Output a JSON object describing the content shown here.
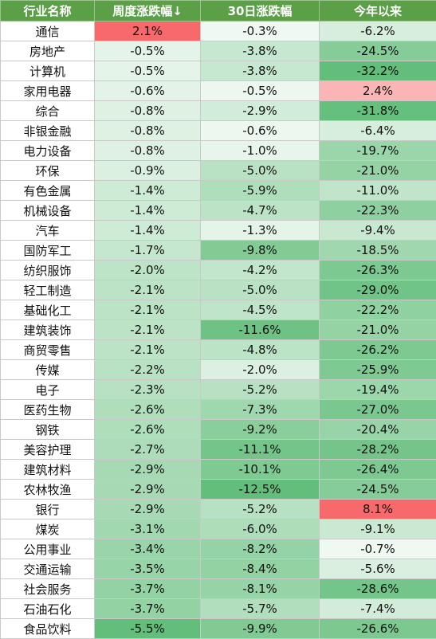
{
  "colors": {
    "header_bg": "#5b9f47",
    "header_text": "#ffffff",
    "positive": "#f8696b",
    "negative": "#63be7b",
    "neutral": "#ffffff"
  },
  "chart_data": {
    "type": "table",
    "columns": [
      "行业名称",
      "周度涨跌幅↓",
      "30日涨跌幅",
      "今年以来"
    ],
    "sort": "周度涨跌幅 descending",
    "rows": [
      [
        "通信",
        "2.1%",
        "-0.3%",
        "-6.2%"
      ],
      [
        "房地产",
        "-0.5%",
        "-3.8%",
        "-24.5%"
      ],
      [
        "计算机",
        "-0.5%",
        "-3.8%",
        "-32.2%"
      ],
      [
        "家用电器",
        "-0.6%",
        "-0.5%",
        "2.4%"
      ],
      [
        "综合",
        "-0.8%",
        "-2.9%",
        "-31.8%"
      ],
      [
        "非银金融",
        "-0.8%",
        "-0.6%",
        "-6.4%"
      ],
      [
        "电力设备",
        "-0.8%",
        "-1.0%",
        "-19.7%"
      ],
      [
        "环保",
        "-0.9%",
        "-5.0%",
        "-21.0%"
      ],
      [
        "有色金属",
        "-1.4%",
        "-5.9%",
        "-11.0%"
      ],
      [
        "机械设备",
        "-1.4%",
        "-4.7%",
        "-22.3%"
      ],
      [
        "汽车",
        "-1.4%",
        "-1.3%",
        "-9.4%"
      ],
      [
        "国防军工",
        "-1.7%",
        "-9.8%",
        "-18.5%"
      ],
      [
        "纺织服饰",
        "-2.0%",
        "-4.2%",
        "-26.3%"
      ],
      [
        "轻工制造",
        "-2.1%",
        "-5.0%",
        "-29.0%"
      ],
      [
        "基础化工",
        "-2.1%",
        "-4.5%",
        "-22.2%"
      ],
      [
        "建筑装饰",
        "-2.1%",
        "-11.6%",
        "-21.0%"
      ],
      [
        "商贸零售",
        "-2.1%",
        "-4.8%",
        "-26.2%"
      ],
      [
        "传媒",
        "-2.2%",
        "-2.0%",
        "-25.9%"
      ],
      [
        "电子",
        "-2.3%",
        "-5.2%",
        "-19.4%"
      ],
      [
        "医药生物",
        "-2.6%",
        "-7.3%",
        "-27.0%"
      ],
      [
        "钢铁",
        "-2.6%",
        "-9.2%",
        "-20.4%"
      ],
      [
        "美容护理",
        "-2.7%",
        "-11.1%",
        "-28.2%"
      ],
      [
        "建筑材料",
        "-2.9%",
        "-10.1%",
        "-26.4%"
      ],
      [
        "农林牧渔",
        "-2.9%",
        "-12.5%",
        "-24.5%"
      ],
      [
        "银行",
        "-2.9%",
        "-5.2%",
        "8.1%"
      ],
      [
        "煤炭",
        "-3.1%",
        "-6.0%",
        "-9.1%"
      ],
      [
        "公用事业",
        "-3.4%",
        "-8.2%",
        "-0.7%"
      ],
      [
        "交通运输",
        "-3.5%",
        "-8.4%",
        "-5.6%"
      ],
      [
        "社会服务",
        "-3.7%",
        "-8.1%",
        "-28.6%"
      ],
      [
        "石油石化",
        "-3.7%",
        "-5.7%",
        "-7.4%"
      ],
      [
        "食品饮料",
        "-5.5%",
        "-9.9%",
        "-26.6%"
      ]
    ]
  }
}
